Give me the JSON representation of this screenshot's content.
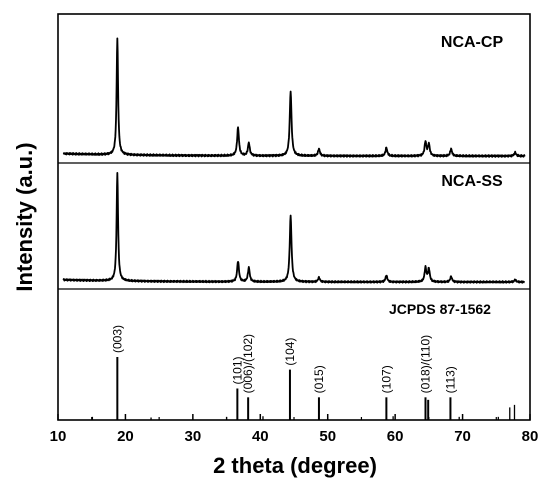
{
  "chart_data": {
    "type": "line",
    "xlabel": "2 theta (degree)",
    "ylabel": "Intensity (a.u.)",
    "xlim": [
      10,
      80
    ],
    "x_ticks": [
      10,
      20,
      30,
      40,
      50,
      60,
      70,
      80
    ],
    "panels": [
      {
        "name": "NCA-CP",
        "baseline": 0.05,
        "peaks": [
          {
            "x": 18.8,
            "h": 1.0
          },
          {
            "x": 36.7,
            "h": 0.24
          },
          {
            "x": 38.3,
            "h": 0.11
          },
          {
            "x": 44.5,
            "h": 0.55
          },
          {
            "x": 48.7,
            "h": 0.06
          },
          {
            "x": 58.7,
            "h": 0.07
          },
          {
            "x": 64.5,
            "h": 0.12
          },
          {
            "x": 65.0,
            "h": 0.1
          },
          {
            "x": 68.3,
            "h": 0.06
          },
          {
            "x": 77.8,
            "h": 0.03
          }
        ]
      },
      {
        "name": "NCA-SS",
        "baseline": 0.05,
        "peaks": [
          {
            "x": 18.8,
            "h": 1.0
          },
          {
            "x": 36.7,
            "h": 0.19
          },
          {
            "x": 38.3,
            "h": 0.13
          },
          {
            "x": 44.5,
            "h": 0.61
          },
          {
            "x": 48.7,
            "h": 0.04
          },
          {
            "x": 58.7,
            "h": 0.06
          },
          {
            "x": 64.5,
            "h": 0.13
          },
          {
            "x": 65.0,
            "h": 0.12
          },
          {
            "x": 68.3,
            "h": 0.05
          },
          {
            "x": 77.8,
            "h": 0.02
          }
        ]
      }
    ],
    "reference": {
      "name": "JCPDS 87-1562",
      "lines": [
        {
          "x": 15.1,
          "h": 0.05,
          "label": ""
        },
        {
          "x": 18.8,
          "h": 1.0,
          "label": "(003)"
        },
        {
          "x": 23.8,
          "h": 0.04,
          "label": ""
        },
        {
          "x": 35.0,
          "h": 0.05,
          "label": ""
        },
        {
          "x": 36.6,
          "h": 0.5,
          "label": "(101)"
        },
        {
          "x": 38.2,
          "h": 0.36,
          "label": "(006)/(102)"
        },
        {
          "x": 40.4,
          "h": 0.06,
          "label": ""
        },
        {
          "x": 44.4,
          "h": 0.8,
          "label": "(104)"
        },
        {
          "x": 48.7,
          "h": 0.36,
          "label": "(015)"
        },
        {
          "x": 50.0,
          "h": 0.05,
          "label": ""
        },
        {
          "x": 58.7,
          "h": 0.36,
          "label": "(107)"
        },
        {
          "x": 59.7,
          "h": 0.06,
          "label": ""
        },
        {
          "x": 64.5,
          "h": 0.36,
          "label": "(018)/(110)"
        },
        {
          "x": 64.9,
          "h": 0.32,
          "label": ""
        },
        {
          "x": 68.2,
          "h": 0.36,
          "label": "(113)"
        },
        {
          "x": 69.5,
          "h": 0.05,
          "label": ""
        },
        {
          "x": 75.3,
          "h": 0.05,
          "label": ""
        },
        {
          "x": 77.0,
          "h": 0.2,
          "label": ""
        },
        {
          "x": 77.7,
          "h": 0.24,
          "label": ""
        }
      ]
    }
  }
}
